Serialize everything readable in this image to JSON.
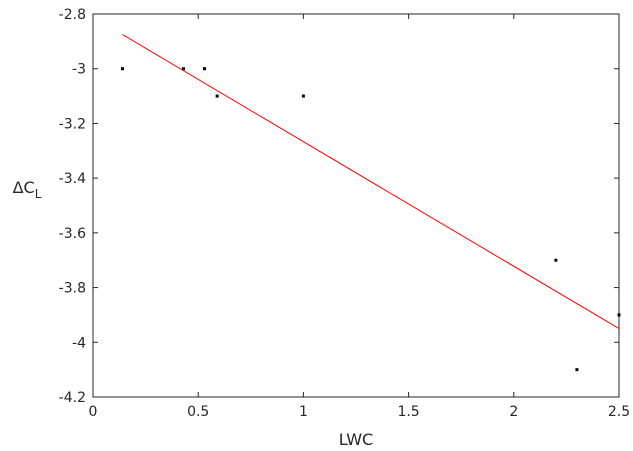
{
  "chart_data": {
    "type": "scatter",
    "title": "",
    "xlabel": "LWC",
    "ylabel_main": "ΔC",
    "ylabel_sub": "L",
    "xlim": [
      0,
      2.5
    ],
    "ylim": [
      -4.2,
      -2.8
    ],
    "x_ticks": [
      0,
      0.5,
      1,
      1.5,
      2,
      2.5
    ],
    "x_tick_labels": [
      "0",
      "0.5",
      "1",
      "1.5",
      "2",
      "2.5"
    ],
    "y_ticks": [
      -2.8,
      -3,
      -3.2,
      -3.4,
      -3.6,
      -3.8,
      -4,
      -4.2
    ],
    "y_tick_labels": [
      "-2.8",
      "-3",
      "-3.2",
      "-3.4",
      "-3.6",
      "-3.8",
      "-4",
      "-4.2"
    ],
    "grid": false,
    "series": [
      {
        "type": "scatter",
        "color": "#000000",
        "points": [
          {
            "x": 0.14,
            "y": -3.0
          },
          {
            "x": 0.43,
            "y": -3.0
          },
          {
            "x": 0.53,
            "y": -3.0
          },
          {
            "x": 0.59,
            "y": -3.1
          },
          {
            "x": 1.0,
            "y": -3.1
          },
          {
            "x": 2.2,
            "y": -3.7
          },
          {
            "x": 2.3,
            "y": -4.1
          },
          {
            "x": 2.5,
            "y": -3.9
          }
        ]
      },
      {
        "type": "line",
        "color": "#ff0000",
        "points": [
          {
            "x": 0.14,
            "y": -2.875
          },
          {
            "x": 2.5,
            "y": -3.95
          }
        ]
      }
    ]
  }
}
